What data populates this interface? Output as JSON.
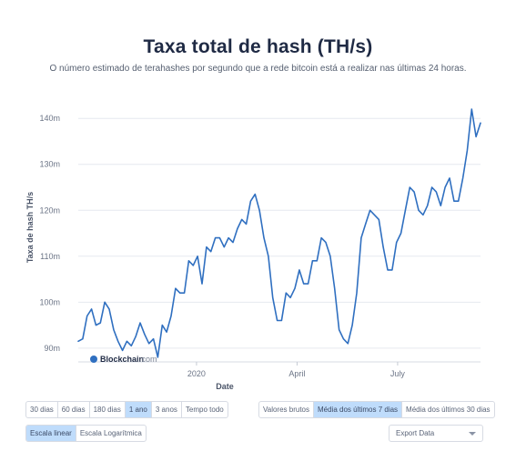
{
  "header": {
    "title": "Taxa total de hash (TH/s)",
    "subtitle": "O número estimado de terahashes por segundo que a rede bitcoin está a realizar nas últimas 24 horas."
  },
  "watermark": {
    "brand": "Blockchain",
    "suffix": ".com"
  },
  "range_buttons": [
    {
      "label": "30 dias",
      "active": false
    },
    {
      "label": "60 dias",
      "active": false
    },
    {
      "label": "180 dias",
      "active": false
    },
    {
      "label": "1 ano",
      "active": true
    },
    {
      "label": "3 anos",
      "active": false
    },
    {
      "label": "Tempo todo",
      "active": false
    }
  ],
  "view_buttons": [
    {
      "label": "Valores brutos",
      "active": false
    },
    {
      "label": "Média dos últimos 7 dias",
      "active": true
    },
    {
      "label": "Média dos últimos 30 dias",
      "active": false
    }
  ],
  "scale_buttons": [
    {
      "label": "Escala linear",
      "active": true
    },
    {
      "label": "Escala Logarítmica",
      "active": false
    }
  ],
  "export": {
    "label": "Export Data"
  },
  "colors": {
    "line": "#2f6fc0",
    "grid": "#e6e9ef",
    "accent": "#bfdcfb",
    "text": "#1f2a44"
  },
  "chart_data": {
    "type": "line",
    "xlabel": "Date",
    "ylabel": "Taxa de hash TH/s",
    "ylim": [
      87,
      144
    ],
    "xlim": [
      "2019-09-16",
      "2020-09-14"
    ],
    "yticks": [
      {
        "value": 90,
        "label": "90m"
      },
      {
        "value": 100,
        "label": "100m"
      },
      {
        "value": 110,
        "label": "110m"
      },
      {
        "value": 120,
        "label": "120m"
      },
      {
        "value": 130,
        "label": "130m"
      },
      {
        "value": 140,
        "label": "140m"
      }
    ],
    "xticks": [
      {
        "date": "2020-01-01",
        "label": "2020"
      },
      {
        "date": "2020-04-01",
        "label": "April"
      },
      {
        "date": "2020-07-01",
        "label": "July"
      }
    ],
    "grid": true,
    "legend": "none",
    "series": [
      {
        "x": [
          "2019-09-16",
          "2019-09-20",
          "2019-09-24",
          "2019-09-28",
          "2019-10-02",
          "2019-10-06",
          "2019-10-10",
          "2019-10-14",
          "2019-10-18",
          "2019-10-22",
          "2019-10-26",
          "2019-10-30",
          "2019-11-03",
          "2019-11-07",
          "2019-11-11",
          "2019-11-15",
          "2019-11-19",
          "2019-11-23",
          "2019-11-27",
          "2019-12-01",
          "2019-12-05",
          "2019-12-09",
          "2019-12-13",
          "2019-12-17",
          "2019-12-21",
          "2019-12-25",
          "2019-12-29",
          "2020-01-02",
          "2020-01-06",
          "2020-01-10",
          "2020-01-14",
          "2020-01-18",
          "2020-01-22",
          "2020-01-26",
          "2020-01-30",
          "2020-02-03",
          "2020-02-07",
          "2020-02-11",
          "2020-02-15",
          "2020-02-19",
          "2020-02-23",
          "2020-02-27",
          "2020-03-02",
          "2020-03-06",
          "2020-03-10",
          "2020-03-14",
          "2020-03-18",
          "2020-03-22",
          "2020-03-26",
          "2020-03-30",
          "2020-04-03",
          "2020-04-07",
          "2020-04-11",
          "2020-04-15",
          "2020-04-19",
          "2020-04-23",
          "2020-04-27",
          "2020-05-01",
          "2020-05-05",
          "2020-05-09",
          "2020-05-13",
          "2020-05-17",
          "2020-05-21",
          "2020-05-25",
          "2020-05-29",
          "2020-06-02",
          "2020-06-06",
          "2020-06-10",
          "2020-06-14",
          "2020-06-18",
          "2020-06-22",
          "2020-06-26",
          "2020-06-30",
          "2020-07-04",
          "2020-07-08",
          "2020-07-12",
          "2020-07-16",
          "2020-07-20",
          "2020-07-24",
          "2020-07-28",
          "2020-08-01",
          "2020-08-05",
          "2020-08-09",
          "2020-08-13",
          "2020-08-17",
          "2020-08-21",
          "2020-08-25",
          "2020-08-29",
          "2020-09-02",
          "2020-09-06",
          "2020-09-10",
          "2020-09-14"
        ],
        "values": [
          91.5,
          92,
          97,
          98.5,
          95,
          95.5,
          100,
          98.5,
          94,
          91.5,
          89.5,
          91.5,
          90.5,
          92.5,
          95.5,
          93,
          91,
          92,
          88,
          95,
          93.5,
          97,
          103,
          102,
          102,
          109,
          108,
          110,
          104,
          112,
          111,
          114,
          114,
          112,
          114,
          113,
          116,
          118,
          117,
          122,
          123.5,
          120,
          114,
          110,
          101,
          96,
          96,
          102,
          101,
          103,
          107,
          104,
          104,
          109,
          109,
          114,
          113,
          110,
          103,
          94,
          92,
          91,
          95,
          102,
          114,
          117,
          120,
          119,
          118,
          112,
          107,
          107,
          113,
          115,
          120,
          125,
          124,
          120,
          119,
          121,
          125,
          124,
          121,
          125,
          127,
          122,
          122,
          127,
          133,
          142,
          136,
          139
        ]
      }
    ]
  }
}
